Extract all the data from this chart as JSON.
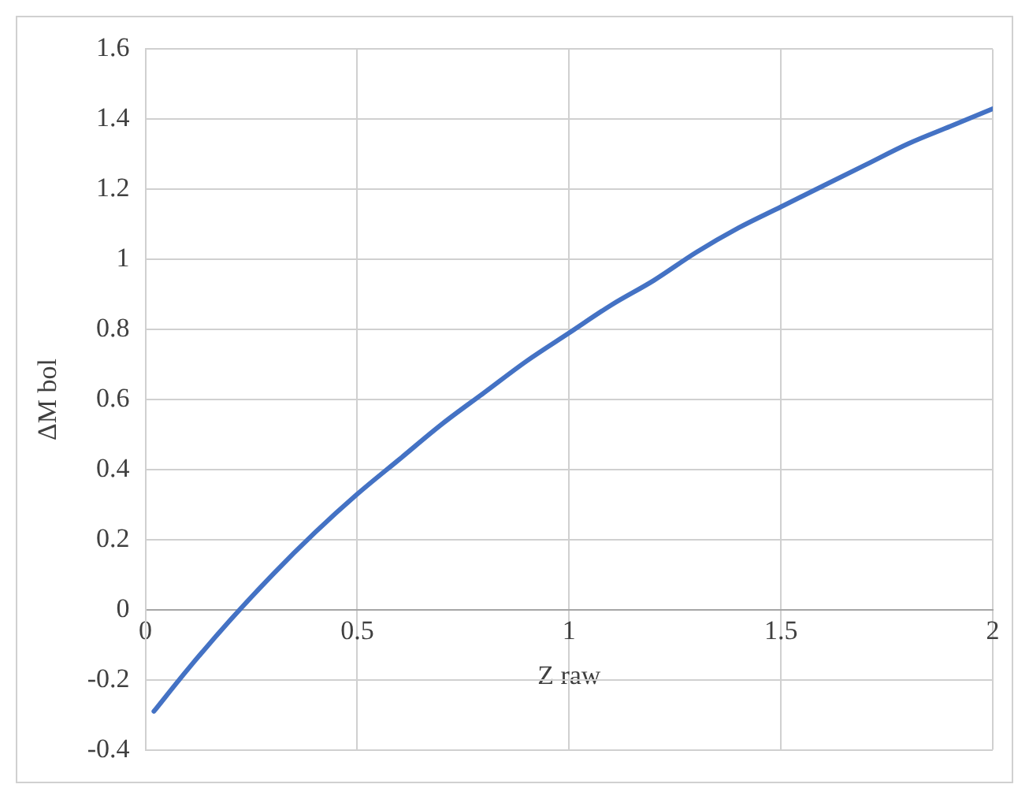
{
  "chart_data": {
    "type": "line",
    "xlabel": "Z raw",
    "ylabel": "ΔM bol",
    "series": [
      {
        "color": "#4472c4",
        "x": [
          0.02,
          0.1,
          0.2,
          0.3,
          0.4,
          0.5,
          0.6,
          0.7,
          0.8,
          0.9,
          1.0,
          1.1,
          1.2,
          1.3,
          1.4,
          1.5,
          1.6,
          1.7,
          1.8,
          1.9,
          2.0
        ],
        "values": [
          -0.29,
          -0.17,
          -0.03,
          0.1,
          0.22,
          0.33,
          0.43,
          0.53,
          0.62,
          0.71,
          0.79,
          0.87,
          0.94,
          1.02,
          1.09,
          1.15,
          1.21,
          1.27,
          1.33,
          1.38,
          1.43
        ]
      }
    ],
    "xlim": [
      0,
      2
    ],
    "xticks": [
      0,
      0.5,
      1,
      1.5,
      2
    ],
    "ylim": [
      -0.4,
      1.6
    ],
    "yticks": [
      -0.4,
      -0.2,
      0,
      0.2,
      0.4,
      0.6,
      0.8,
      1,
      1.2,
      1.4,
      1.6
    ],
    "grid": true,
    "legend": false,
    "marker": "none",
    "line_style": "solid"
  }
}
